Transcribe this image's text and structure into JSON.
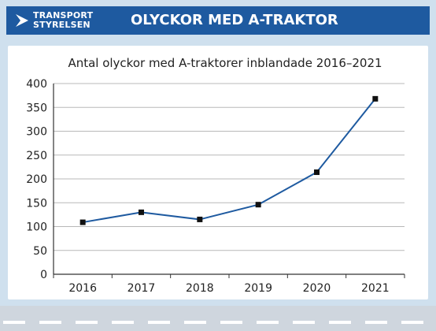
{
  "header": {
    "logo_line1": "TRANSPORT",
    "logo_line2": "STYRELSEN",
    "title": "OLYCKOR MED A-TRAKTOR"
  },
  "colors": {
    "header_band": "#1e5aa0",
    "background": "#cfe0ee",
    "line": "#1e5aa0",
    "marker": "#111111"
  },
  "chart_data": {
    "type": "line",
    "title": "Antal olyckor med A-traktorer inblandade 2016–2021",
    "xlabel": "",
    "ylabel": "",
    "categories": [
      "2016",
      "2017",
      "2018",
      "2019",
      "2020",
      "2021"
    ],
    "series": [
      {
        "values": [
          109,
          130,
          115,
          146,
          214,
          368
        ]
      }
    ],
    "ylim": [
      0,
      400
    ],
    "yticks": [
      0,
      50,
      100,
      150,
      200,
      250,
      300,
      350,
      400
    ],
    "grid": true,
    "legend": "none"
  }
}
